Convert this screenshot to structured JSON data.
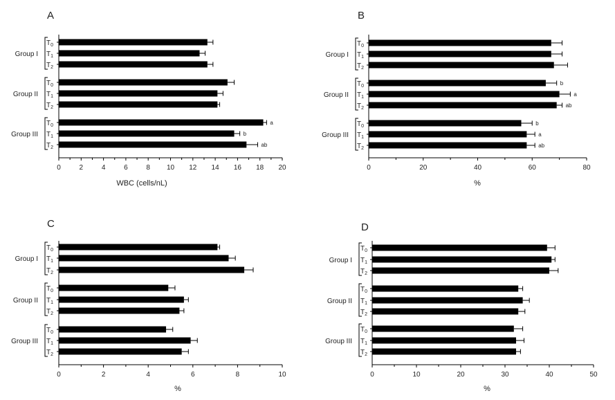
{
  "chart_data": [
    {
      "panel": "A",
      "type": "bar",
      "orientation": "horizontal",
      "xlabel": "WBC (cells/nL)",
      "xlim": [
        0,
        20
      ],
      "xticks": [
        0,
        2,
        4,
        6,
        8,
        10,
        12,
        14,
        16,
        18,
        20
      ],
      "groups": [
        {
          "name": "Group I",
          "bars": [
            {
              "label": "T0",
              "value": 13.3,
              "error": 0.5,
              "annotation": ""
            },
            {
              "label": "T1",
              "value": 12.6,
              "error": 0.5,
              "annotation": ""
            },
            {
              "label": "T2",
              "value": 13.3,
              "error": 0.5,
              "annotation": ""
            }
          ]
        },
        {
          "name": "Group II",
          "bars": [
            {
              "label": "T0",
              "value": 15.1,
              "error": 0.6,
              "annotation": ""
            },
            {
              "label": "T1",
              "value": 14.2,
              "error": 0.5,
              "annotation": ""
            },
            {
              "label": "T2",
              "value": 14.2,
              "error": 0.2,
              "annotation": ""
            }
          ]
        },
        {
          "name": "Group III",
          "bars": [
            {
              "label": "T0",
              "value": 18.3,
              "error": 0.3,
              "annotation": "a"
            },
            {
              "label": "T1",
              "value": 15.7,
              "error": 0.5,
              "annotation": "b"
            },
            {
              "label": "T2",
              "value": 16.8,
              "error": 1.0,
              "annotation": "ab"
            }
          ]
        }
      ]
    },
    {
      "panel": "B",
      "type": "bar",
      "orientation": "horizontal",
      "xlabel": "%",
      "xlim": [
        0,
        80
      ],
      "xticks": [
        0,
        20,
        40,
        60,
        80
      ],
      "groups": [
        {
          "name": "Group I",
          "bars": [
            {
              "label": "T0",
              "value": 67,
              "error": 4,
              "annotation": ""
            },
            {
              "label": "T1",
              "value": 67,
              "error": 4,
              "annotation": ""
            },
            {
              "label": "T2",
              "value": 68,
              "error": 5,
              "annotation": ""
            }
          ]
        },
        {
          "name": "Group II",
          "bars": [
            {
              "label": "T0",
              "value": 65,
              "error": 4,
              "annotation": "b"
            },
            {
              "label": "T1",
              "value": 70,
              "error": 4,
              "annotation": "a"
            },
            {
              "label": "T2",
              "value": 69,
              "error": 2,
              "annotation": "ab"
            }
          ]
        },
        {
          "name": "Group III",
          "bars": [
            {
              "label": "T0",
              "value": 56,
              "error": 4,
              "annotation": "b"
            },
            {
              "label": "T1",
              "value": 58,
              "error": 3,
              "annotation": "a"
            },
            {
              "label": "T2",
              "value": 58,
              "error": 3,
              "annotation": "ab"
            }
          ]
        }
      ]
    },
    {
      "panel": "C",
      "type": "bar",
      "orientation": "horizontal",
      "xlabel": "%",
      "xlim": [
        0,
        10
      ],
      "xticks": [
        0,
        2,
        4,
        6,
        8,
        10
      ],
      "groups": [
        {
          "name": "Group I",
          "bars": [
            {
              "label": "T0",
              "value": 7.1,
              "error": 0.1,
              "annotation": ""
            },
            {
              "label": "T1",
              "value": 7.6,
              "error": 0.3,
              "annotation": ""
            },
            {
              "label": "T2",
              "value": 8.3,
              "error": 0.4,
              "annotation": ""
            }
          ]
        },
        {
          "name": "Group II",
          "bars": [
            {
              "label": "T0",
              "value": 4.9,
              "error": 0.3,
              "annotation": ""
            },
            {
              "label": "T1",
              "value": 5.6,
              "error": 0.2,
              "annotation": ""
            },
            {
              "label": "T2",
              "value": 5.4,
              "error": 0.2,
              "annotation": ""
            }
          ]
        },
        {
          "name": "Group III",
          "bars": [
            {
              "label": "T0",
              "value": 4.8,
              "error": 0.3,
              "annotation": ""
            },
            {
              "label": "T1",
              "value": 5.9,
              "error": 0.3,
              "annotation": ""
            },
            {
              "label": "T2",
              "value": 5.5,
              "error": 0.3,
              "annotation": ""
            }
          ]
        }
      ]
    },
    {
      "panel": "D",
      "type": "bar",
      "orientation": "horizontal",
      "xlabel": "%",
      "xlim": [
        0,
        50
      ],
      "xticks": [
        0,
        10,
        20,
        30,
        40,
        50
      ],
      "groups": [
        {
          "name": "Group I",
          "bars": [
            {
              "label": "T0",
              "value": 39.5,
              "error": 1.8,
              "annotation": ""
            },
            {
              "label": "T1",
              "value": 40.5,
              "error": 0.8,
              "annotation": ""
            },
            {
              "label": "T2",
              "value": 40.0,
              "error": 2.0,
              "annotation": ""
            }
          ]
        },
        {
          "name": "Group II",
          "bars": [
            {
              "label": "T0",
              "value": 33.0,
              "error": 1.0,
              "annotation": ""
            },
            {
              "label": "T1",
              "value": 34.0,
              "error": 1.5,
              "annotation": ""
            },
            {
              "label": "T2",
              "value": 33.0,
              "error": 1.5,
              "annotation": ""
            }
          ]
        },
        {
          "name": "Group III",
          "bars": [
            {
              "label": "T0",
              "value": 32.0,
              "error": 2.0,
              "annotation": ""
            },
            {
              "label": "T1",
              "value": 32.5,
              "error": 1.8,
              "annotation": ""
            },
            {
              "label": "T2",
              "value": 32.5,
              "error": 1.0,
              "annotation": ""
            }
          ]
        }
      ]
    }
  ]
}
